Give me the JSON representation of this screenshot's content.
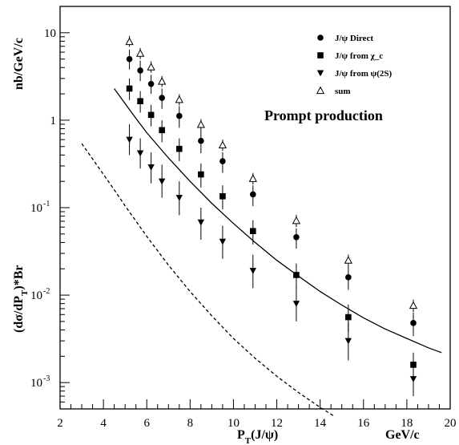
{
  "chart_data": {
    "type": "scatter",
    "yscale": "log",
    "xlim": [
      2,
      20
    ],
    "ylim": [
      0.0005,
      20
    ],
    "xlabel": "P_T(J/ψ)",
    "xunit": "GeV/c",
    "ylabel": "(dσ/dP_T)*Br",
    "yunit": "nb/GeV/c",
    "annotation": "Prompt production",
    "legend_position": "top-right",
    "x_ticks": [
      "2",
      "4",
      "6",
      "8",
      "10",
      "12",
      "14",
      "16",
      "18",
      "20"
    ],
    "y_ticks": [
      {
        "value": 10,
        "mantissa": "10",
        "exp": ""
      },
      {
        "value": 1,
        "mantissa": "1",
        "exp": ""
      },
      {
        "value": 0.1,
        "mantissa": "10",
        "exp": "-1"
      },
      {
        "value": 0.01,
        "mantissa": "10",
        "exp": "-2"
      },
      {
        "value": 0.001,
        "mantissa": "10",
        "exp": "-3"
      }
    ],
    "x": [
      5.2,
      5.7,
      6.2,
      6.7,
      7.5,
      8.5,
      9.5,
      10.9,
      12.9,
      15.3,
      18.3
    ],
    "series": [
      {
        "name": "J/ψ Direct",
        "marker": "circle",
        "values": [
          5.0,
          3.7,
          2.6,
          1.8,
          1.12,
          0.58,
          0.34,
          0.142,
          0.046,
          0.016,
          0.0048
        ],
        "err_lo": [
          3.8,
          2.8,
          2.0,
          1.35,
          0.82,
          0.42,
          0.25,
          0.104,
          0.034,
          0.0115,
          0.0034
        ],
        "err_hi": [
          6.4,
          4.8,
          3.3,
          2.3,
          1.45,
          0.76,
          0.43,
          0.18,
          0.058,
          0.021,
          0.0063
        ]
      },
      {
        "name": "J/ψ from χ_c",
        "marker": "square",
        "values": [
          2.3,
          1.65,
          1.15,
          0.77,
          0.47,
          0.24,
          0.135,
          0.054,
          0.017,
          0.0056,
          0.0016
        ],
        "err_lo": [
          1.7,
          1.22,
          0.85,
          0.56,
          0.34,
          0.17,
          0.096,
          0.038,
          0.012,
          0.0038,
          0.00105
        ],
        "err_hi": [
          3.0,
          2.15,
          1.5,
          1.0,
          0.62,
          0.32,
          0.18,
          0.072,
          0.023,
          0.0078,
          0.0022
        ]
      },
      {
        "name": "J/ψ from ψ(2S)",
        "marker": "triangle-down",
        "values": [
          0.6,
          0.42,
          0.29,
          0.2,
          0.13,
          0.068,
          0.041,
          0.019,
          0.008,
          0.003,
          0.0011
        ],
        "err_lo": [
          0.4,
          0.28,
          0.19,
          0.13,
          0.082,
          0.043,
          0.026,
          0.012,
          0.005,
          0.0018,
          0.0007
        ],
        "err_hi": [
          0.9,
          0.62,
          0.43,
          0.31,
          0.2,
          0.1,
          0.062,
          0.029,
          0.0125,
          0.0048,
          0.0017
        ]
      },
      {
        "name": "sum",
        "marker": "triangle-open",
        "values": [
          7.9,
          5.8,
          4.05,
          2.78,
          1.72,
          0.89,
          0.52,
          0.215,
          0.071,
          0.025,
          0.0076
        ],
        "err_lo": [
          6.9,
          5.0,
          3.5,
          2.4,
          1.48,
          0.76,
          0.445,
          0.184,
          0.06,
          0.021,
          0.0064
        ],
        "err_hi": [
          9.2,
          6.7,
          4.7,
          3.2,
          1.98,
          1.03,
          0.6,
          0.25,
          0.083,
          0.029,
          0.0089
        ]
      }
    ],
    "curves": [
      {
        "style": "solid",
        "x": [
          4.5,
          5.0,
          5.5,
          6.0,
          7.0,
          8.0,
          9.0,
          10.0,
          11.0,
          12.0,
          13.0,
          14.0,
          15.0,
          16.0,
          17.0,
          18.0,
          19.0,
          19.6
        ],
        "y": [
          2.3,
          1.55,
          1.05,
          0.72,
          0.37,
          0.2,
          0.112,
          0.066,
          0.04,
          0.025,
          0.0165,
          0.011,
          0.0077,
          0.0055,
          0.0041,
          0.0032,
          0.0025,
          0.0022
        ]
      },
      {
        "style": "dashed",
        "x": [
          3.0,
          3.5,
          4.0,
          4.5,
          5.0,
          6.0,
          7.0,
          8.0,
          9.0,
          10.0,
          11.0,
          12.0,
          13.0,
          14.0,
          14.6
        ],
        "y": [
          0.54,
          0.36,
          0.24,
          0.16,
          0.105,
          0.047,
          0.022,
          0.011,
          0.0058,
          0.0032,
          0.0019,
          0.00118,
          0.00077,
          0.00052,
          0.00042
        ]
      }
    ]
  }
}
